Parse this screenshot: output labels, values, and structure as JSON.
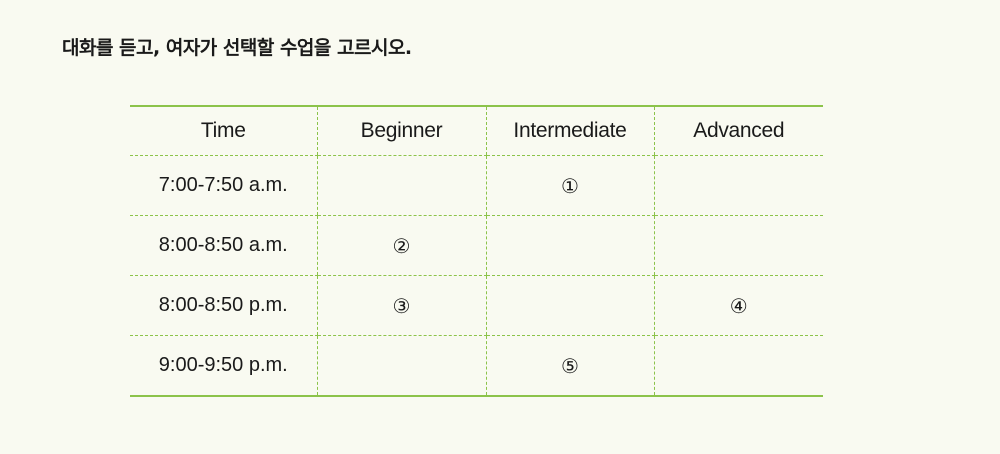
{
  "question": "대화를 듣고, 여자가 선택할 수업을 고르시오.",
  "table": {
    "headers": [
      "Time",
      "Beginner",
      "Intermediate",
      "Advanced"
    ],
    "rows": [
      {
        "time": "7:00-7:50 a.m.",
        "beginner": "",
        "intermediate": "①",
        "advanced": ""
      },
      {
        "time": "8:00-8:50 a.m.",
        "beginner": "②",
        "intermediate": "",
        "advanced": ""
      },
      {
        "time": "8:00-8:50 p.m.",
        "beginner": "③",
        "intermediate": "",
        "advanced": "④"
      },
      {
        "time": "9:00-9:50 p.m.",
        "beginner": "",
        "intermediate": "⑤",
        "advanced": ""
      }
    ]
  },
  "colors": {
    "background": "#f9faf1",
    "rule": "#8cc34a",
    "text": "#1a1a1a"
  }
}
